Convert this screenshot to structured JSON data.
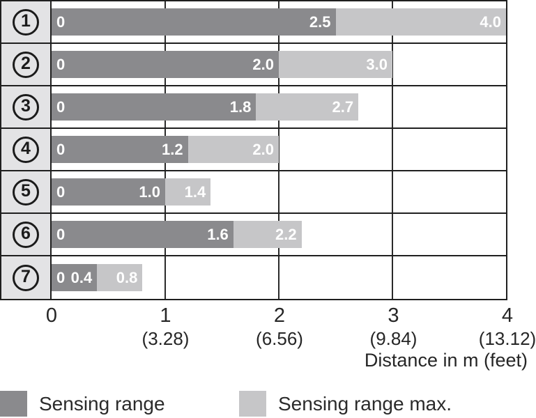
{
  "chart_data": {
    "type": "bar",
    "orientation": "horizontal",
    "xlabel": "Distance in m (feet)",
    "xlim": [
      0,
      4
    ],
    "grid": true,
    "rows": [
      {
        "digit": "1",
        "sensing_range": 2.5,
        "sensing_range_max": 4.0,
        "zero_label": "0",
        "range_label": "2.5",
        "max_label": "4.0"
      },
      {
        "digit": "2",
        "sensing_range": 2.0,
        "sensing_range_max": 3.0,
        "zero_label": "0",
        "range_label": "2.0",
        "max_label": "3.0"
      },
      {
        "digit": "3",
        "sensing_range": 1.8,
        "sensing_range_max": 2.7,
        "zero_label": "0",
        "range_label": "1.8",
        "max_label": "2.7"
      },
      {
        "digit": "4",
        "sensing_range": 1.2,
        "sensing_range_max": 2.0,
        "zero_label": "0",
        "range_label": "1.2",
        "max_label": "2.0"
      },
      {
        "digit": "5",
        "sensing_range": 1.0,
        "sensing_range_max": 1.4,
        "zero_label": "0",
        "range_label": "1.0",
        "max_label": "1.4"
      },
      {
        "digit": "6",
        "sensing_range": 1.6,
        "sensing_range_max": 2.2,
        "zero_label": "0",
        "range_label": "1.6",
        "max_label": "2.2"
      },
      {
        "digit": "7",
        "sensing_range": 0.4,
        "sensing_range_max": 0.8,
        "zero_label": "0",
        "range_label": "0.4",
        "max_label": "0.8"
      }
    ],
    "x_ticks": [
      {
        "m": "0",
        "feet": ""
      },
      {
        "m": "1",
        "feet": "(3.28)"
      },
      {
        "m": "2",
        "feet": "(6.56)"
      },
      {
        "m": "3",
        "feet": "(9.84)"
      },
      {
        "m": "4",
        "feet": "(13.12)"
      }
    ],
    "legend": [
      {
        "label": "Sensing range",
        "color": "#8a8a8d"
      },
      {
        "label": "Sensing range max.",
        "color": "#c6c6c8"
      }
    ],
    "colors": {
      "sensing_range": "#8a8a8d",
      "sensing_range_max": "#c6c6c8",
      "row_header_bg": "#e3e3e5",
      "grid_line": "#1f1f1f"
    }
  }
}
